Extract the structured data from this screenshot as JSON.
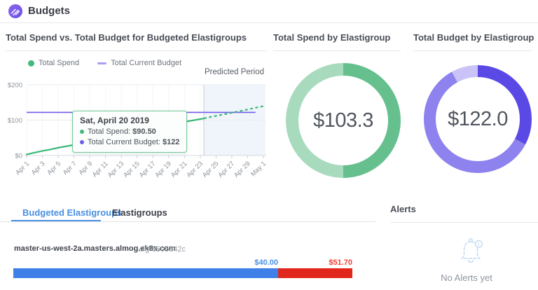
{
  "header": {
    "title": "Budgets"
  },
  "colors": {
    "accent_purple": "#7b5fe8",
    "accent_blue": "#4a90e2",
    "spend_green": "#3bb878",
    "budget_purple": "#6e5be8",
    "bar_blue": "#3f80e8",
    "bar_red": "#e1271c",
    "alert_blue": "#c3dbf4"
  },
  "chart_data": [
    {
      "type": "line",
      "title": "Total Spend vs. Total Budget for Budgeted Elastigroups",
      "annotation": "Predicted Period",
      "xlabel": "",
      "ylabel": "",
      "ylim": [
        0,
        200
      ],
      "days_total": 30,
      "x_tick_labels": [
        "Apr 1",
        "Apr 3",
        "Apr 5",
        "Apr 7",
        "Apr 9",
        "Apr 11",
        "Apr 13",
        "Apr 15",
        "Apr 17",
        "Apr 19",
        "Apr 21",
        "Apr 23",
        "Apr 25",
        "Apr 27",
        "Apr 29",
        "May 1"
      ],
      "y_ticks": [
        {
          "value": 0,
          "label": "$0"
        },
        {
          "value": 100,
          "label": "$100"
        },
        {
          "value": 200,
          "label": "$200"
        }
      ],
      "predicted_start_day": 22.45,
      "series": [
        {
          "name": "Total Spend",
          "color": "#3bb878",
          "legend_color": "#43b87f",
          "actual_days": [
            0,
            1,
            2,
            3,
            4,
            5,
            6,
            7,
            8,
            9,
            10,
            11,
            12,
            13,
            14,
            15,
            16,
            17,
            18,
            19,
            20,
            21,
            22,
            22.45
          ],
          "actual_values": [
            3,
            8,
            13,
            17,
            22,
            26,
            30,
            35,
            39,
            44,
            48,
            52,
            57,
            61,
            66,
            71,
            76,
            81,
            86,
            90.5,
            95,
            99,
            103,
            104.8
          ],
          "predicted_days": [
            22.45,
            23,
            24,
            25,
            26,
            27,
            28,
            29,
            30
          ],
          "predicted_values": [
            104.8,
            107.5,
            112,
            116.5,
            121,
            125.5,
            130,
            135,
            139.5
          ]
        },
        {
          "name": "Total Current Budget",
          "color": "#6e5be8",
          "legend_color": "#a8a0f0",
          "value": 122,
          "day_start": 0,
          "day_end": 29
        }
      ],
      "tooltip": {
        "date": "Sat, April 20 2019",
        "rows": [
          {
            "label": "Total Spend:",
            "value": "$90.50",
            "color": "#43b87f"
          },
          {
            "label": "Total Current Budget:",
            "value": "$122",
            "color": "#6a5de8"
          }
        ],
        "marker_day": 19,
        "marker_value": 90.5
      }
    },
    {
      "type": "donut",
      "title": "Total Spend by Elastigroup",
      "center_label": "$103.3",
      "segments": [
        {
          "value": 51.7,
          "color": "#66c08d"
        },
        {
          "value": 51.6,
          "color": "#a8dbbd"
        }
      ]
    },
    {
      "type": "donut",
      "title": "Total Budget by Elastigroup",
      "center_label": "$122.0",
      "segments": [
        {
          "value": 40.0,
          "color": "#5b49e6"
        },
        {
          "value": 72.2,
          "color": "#8d82ee"
        },
        {
          "value": 9.8,
          "color": "#c9c3f7"
        }
      ]
    }
  ],
  "tabs": [
    {
      "label": "Budgeted Elastigroups",
      "active": true
    },
    {
      "label": "Elastigroups",
      "active": false
    }
  ],
  "budgeted_row": {
    "name": "master-us-west-2a.masters.almog.ek8s.com",
    "sig": "sig-5505342c",
    "spend_label": "$40.00",
    "over_label": "$51.70",
    "spend_pct": 78.1,
    "spend_color": "#3f80e8",
    "over_color": "#e1271c"
  },
  "alerts": {
    "title": "Alerts",
    "empty_text": "No Alerts yet"
  }
}
